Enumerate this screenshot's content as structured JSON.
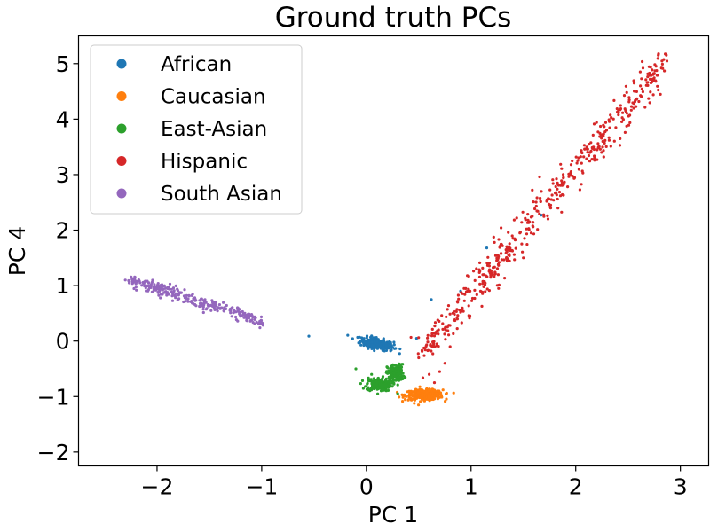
{
  "chart_data": {
    "type": "scatter",
    "title": "Ground truth PCs",
    "xlabel": "PC 1",
    "ylabel": "PC 4",
    "xlim": [
      -2.75,
      3.27
    ],
    "ylim": [
      -2.25,
      5.5
    ],
    "xticks": [
      -2,
      -1,
      0,
      1,
      2,
      3
    ],
    "xtick_labels": [
      "−2",
      "−1",
      "0",
      "1",
      "2",
      "3"
    ],
    "yticks": [
      -2,
      -1,
      0,
      1,
      2,
      3,
      4,
      5
    ],
    "ytick_labels": [
      "−2",
      "−1",
      "0",
      "1",
      "2",
      "3",
      "4",
      "5"
    ],
    "grid": false,
    "legend_position": "top-left",
    "series": [
      {
        "name": "African",
        "color": "#1f77b4",
        "clusters": [
          {
            "center": [
              0.1,
              -0.05
            ],
            "spread": [
              0.08,
              0.05
            ],
            "tilt": -0.35,
            "count": 260
          }
        ],
        "points": [
          [
            -0.55,
            0.09
          ],
          [
            0.48,
            0.05
          ],
          [
            0.62,
            0.75
          ],
          [
            1.15,
            1.68
          ],
          [
            1.67,
            2.27
          ],
          [
            0.9,
            0.9
          ]
        ]
      },
      {
        "name": "Caucasian",
        "color": "#ff7f0e",
        "clusters": [
          {
            "center": [
              0.55,
              -0.97
            ],
            "spread": [
              0.09,
              0.045
            ],
            "tilt": 0.0,
            "count": 340
          }
        ],
        "points": []
      },
      {
        "name": "East-Asian",
        "color": "#2ca02c",
        "clusters": [
          {
            "center": [
              0.12,
              -0.78
            ],
            "spread": [
              0.06,
              0.06
            ],
            "tilt": 0.0,
            "count": 200
          },
          {
            "center": [
              0.28,
              -0.58
            ],
            "spread": [
              0.04,
              0.08
            ],
            "tilt": 0.0,
            "count": 160
          }
        ],
        "points": [
          [
            -0.1,
            -0.5
          ],
          [
            0.3,
            -0.95
          ],
          [
            0.05,
            -0.6
          ]
        ]
      },
      {
        "name": "Hispanic",
        "color": "#d62728",
        "trend": {
          "from": [
            0.55,
            -0.2
          ],
          "to": [
            2.85,
            5.05
          ],
          "count": 520,
          "noise": 0.09
        },
        "points": [
          [
            0.6,
            -0.6
          ],
          [
            0.65,
            -0.75
          ],
          [
            0.7,
            -0.55
          ],
          [
            0.5,
            -0.3
          ],
          [
            0.75,
            -0.4
          ],
          [
            1.5,
            1.5
          ],
          [
            1.2,
            1.2
          ],
          [
            0.8,
            -0.1
          ]
        ]
      },
      {
        "name": "South Asian",
        "color": "#9467bd",
        "trend": {
          "from": [
            -2.28,
            1.12
          ],
          "to": [
            -1.0,
            0.37
          ],
          "count": 300,
          "noise": 0.035
        },
        "points": []
      }
    ]
  }
}
